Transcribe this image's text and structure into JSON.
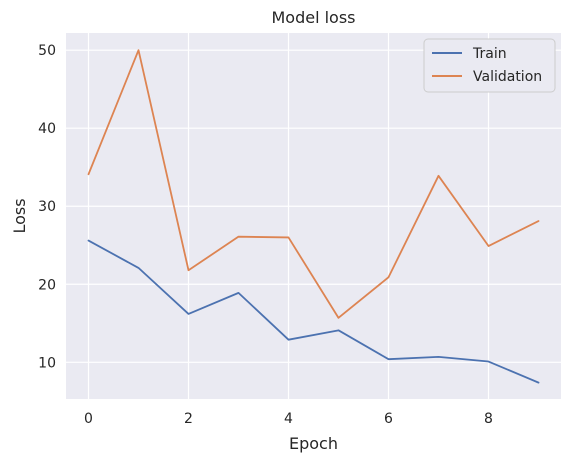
{
  "chart_data": {
    "type": "line",
    "title": "Model loss",
    "xlabel": "Epoch",
    "ylabel": "Loss",
    "x": [
      0,
      1,
      2,
      3,
      4,
      5,
      6,
      7,
      8,
      9
    ],
    "xticks": [
      "0",
      "2",
      "4",
      "6",
      "8"
    ],
    "yticks": [
      "10",
      "20",
      "30",
      "40",
      "50"
    ],
    "xlim": [
      -0.45,
      9.45
    ],
    "ylim": [
      5.3,
      52.2
    ],
    "grid": true,
    "legend_position": "top-right",
    "series": [
      {
        "name": "Train",
        "color": "#4c72b0",
        "values": [
          25.6,
          22.1,
          16.2,
          18.9,
          12.9,
          14.1,
          10.4,
          10.7,
          10.1,
          7.4
        ]
      },
      {
        "name": "Validation",
        "color": "#dd8452",
        "values": [
          34.1,
          50.0,
          21.8,
          26.1,
          26.0,
          15.7,
          20.9,
          33.9,
          24.9,
          28.1
        ]
      }
    ]
  }
}
